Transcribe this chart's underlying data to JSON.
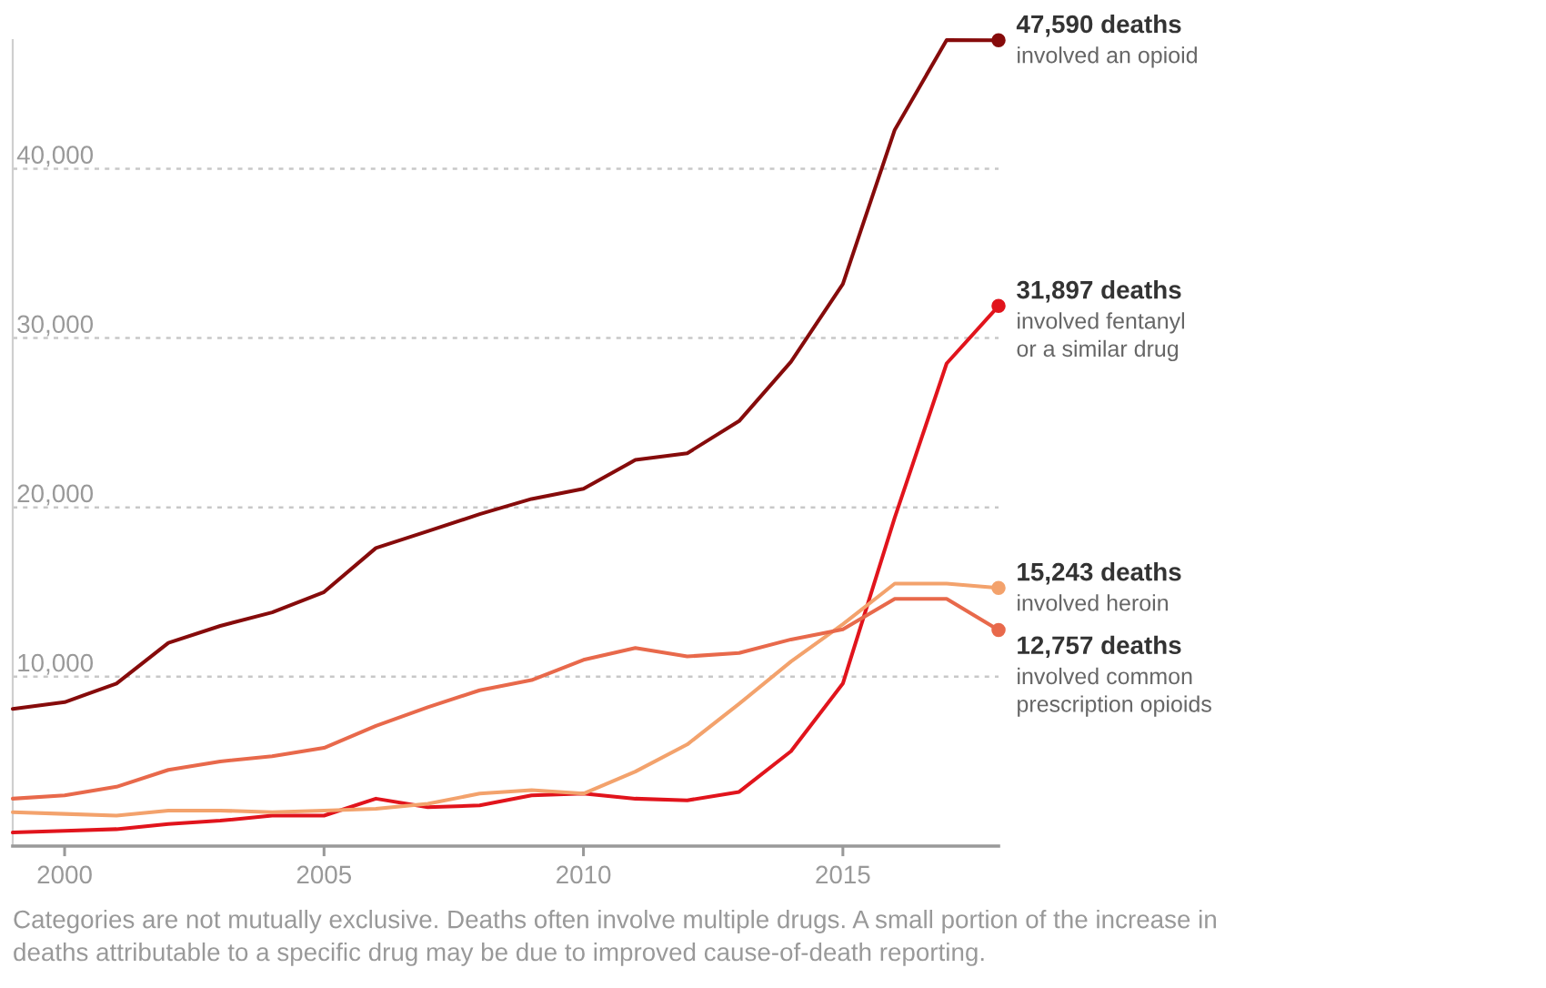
{
  "chart_data": {
    "type": "line",
    "x": [
      1999,
      2000,
      2001,
      2002,
      2003,
      2004,
      2005,
      2006,
      2007,
      2008,
      2009,
      2010,
      2011,
      2012,
      2013,
      2014,
      2015,
      2016,
      2017,
      2018
    ],
    "xlim": [
      1999,
      2018
    ],
    "xticks": [
      2000,
      2005,
      2010,
      2015
    ],
    "ylim": [
      0,
      47600
    ],
    "yticks": [
      {
        "value": 10000,
        "label": "10,000"
      },
      {
        "value": 20000,
        "label": "20,000"
      },
      {
        "value": 30000,
        "label": "30,000"
      },
      {
        "value": 40000,
        "label": "40,000"
      }
    ],
    "grid": "y",
    "marker": "none",
    "line_style": "solid",
    "series": [
      {
        "name": "involved an opioid",
        "color": "#860b0b",
        "values": [
          8100,
          8500,
          9600,
          12000,
          13000,
          13800,
          15000,
          17600,
          18600,
          19600,
          20500,
          21100,
          22800,
          23200,
          25100,
          28600,
          33200,
          42300,
          47600,
          47590
        ],
        "value_labels": [
          null,
          null,
          null,
          null,
          null,
          null,
          null,
          null,
          null,
          null,
          null,
          null,
          null,
          null,
          null,
          null,
          null,
          null,
          null,
          "47,590 deaths"
        ]
      },
      {
        "name": "involved fentanyl\nor a similar drug",
        "color": "#e1141c",
        "values": [
          800,
          900,
          1000,
          1300,
          1500,
          1800,
          1800,
          2800,
          2300,
          2400,
          3000,
          3100,
          2800,
          2700,
          3200,
          5600,
          9600,
          19400,
          28500,
          31897
        ],
        "value_labels": [
          null,
          null,
          null,
          null,
          null,
          null,
          null,
          null,
          null,
          null,
          null,
          null,
          null,
          null,
          null,
          null,
          null,
          null,
          null,
          "31,897 deaths"
        ]
      },
      {
        "name": "involved heroin",
        "color": "#f3a26c",
        "values": [
          2000,
          1900,
          1800,
          2100,
          2100,
          2000,
          2100,
          2200,
          2500,
          3100,
          3300,
          3100,
          4400,
          6000,
          8400,
          10900,
          13100,
          15500,
          15500,
          15243
        ],
        "value_labels": [
          null,
          null,
          null,
          null,
          null,
          null,
          null,
          null,
          null,
          null,
          null,
          null,
          null,
          null,
          null,
          null,
          null,
          null,
          null,
          "15,243 deaths"
        ]
      },
      {
        "name": "involved common\nprescription opioids",
        "color": "#e8694b",
        "values": [
          2800,
          3000,
          3500,
          4500,
          5000,
          5300,
          5800,
          7100,
          8200,
          9200,
          9800,
          11000,
          11700,
          11200,
          11400,
          12200,
          12800,
          14600,
          14600,
          12757
        ],
        "value_labels": [
          null,
          null,
          null,
          null,
          null,
          null,
          null,
          null,
          null,
          null,
          null,
          null,
          null,
          null,
          null,
          null,
          null,
          null,
          null,
          "12,757 deaths"
        ]
      }
    ],
    "annotations": [
      "Categories are not mutually exclusive. Deaths often involve multiple drugs. A small portion of the increase in deaths attributable to a specific drug may be due to improved cause-of-death reporting."
    ]
  }
}
